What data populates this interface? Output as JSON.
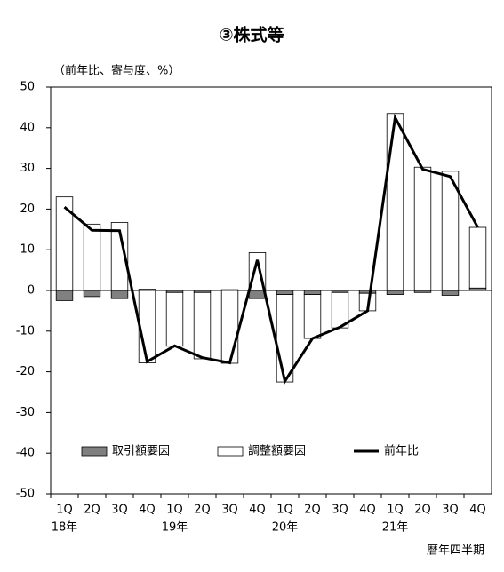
{
  "chart_data": {
    "type": "stacked-bar-line",
    "title": "③株式等",
    "subtitle": "（前年比、寄与度、%）",
    "x_label": "暦年四半期",
    "categories": [
      "1Q",
      "2Q",
      "3Q",
      "4Q",
      "1Q",
      "2Q",
      "3Q",
      "4Q",
      "1Q",
      "2Q",
      "3Q",
      "4Q",
      "1Q",
      "2Q",
      "3Q",
      "4Q"
    ],
    "year_labels": [
      "18年",
      "19年",
      "20年",
      "21年"
    ],
    "series": [
      {
        "name": "取引額要因",
        "kind": "bar",
        "color": "#808080",
        "values": [
          -2.5,
          -1.5,
          -2,
          0.3,
          -0.5,
          -0.5,
          0.2,
          -2,
          -1,
          -1,
          -0.5,
          -0.7,
          -1,
          -0.5,
          -1.2,
          0.6
        ]
      },
      {
        "name": "調整額要因",
        "kind": "bar",
        "color": "#ffffff",
        "values": [
          23,
          16.3,
          16.7,
          -17.8,
          -13.2,
          -16.3,
          -17.9,
          9.3,
          -21.5,
          -10.8,
          -8.7,
          -4.3,
          43.5,
          30.3,
          29.3,
          14.9
        ]
      },
      {
        "name": "前年比",
        "kind": "line",
        "color": "#000000",
        "values": [
          20.5,
          14.8,
          14.7,
          -17.5,
          -13.6,
          -16.5,
          -17.8,
          7.5,
          -22.3,
          -11.8,
          -9,
          -5,
          42.5,
          29.8,
          28,
          15.5
        ]
      }
    ],
    "ylim": [
      -50,
      50
    ],
    "yticks": [
      -50,
      -40,
      -30,
      -20,
      -10,
      0,
      10,
      20,
      30,
      40,
      50
    ]
  }
}
